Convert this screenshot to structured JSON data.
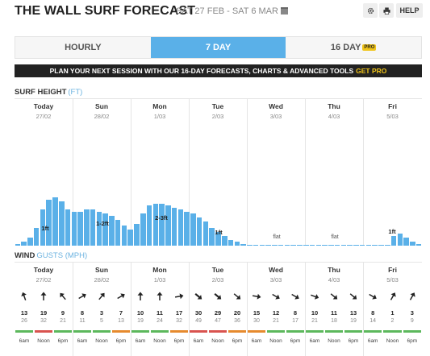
{
  "header": {
    "title": "THE WALL SURF FORECAST",
    "dates": "SAT 27 FEB - SAT 6 MAR",
    "help_label": "HELP"
  },
  "tabs": [
    {
      "label": "HOURLY",
      "active": false
    },
    {
      "label": "7 DAY",
      "active": true
    },
    {
      "label": "16 DAY",
      "active": false,
      "badge": "PRO"
    }
  ],
  "banner": {
    "text": "PLAN YOUR NEXT SESSION WITH OUR 16-DAY FORECASTS, CHARTS & ADVANCED TOOLS",
    "cta": "GET PRO"
  },
  "surf": {
    "label": "SURF HEIGHT",
    "unit": "(FT)"
  },
  "wind": {
    "label": "WIND",
    "unit": "GUSTS (MPH)"
  },
  "colors": {
    "accent": "#5ab0e8",
    "green": "#5cb85c",
    "orange": "#e68a2e",
    "red": "#d9534f"
  },
  "days": [
    {
      "name": "Today",
      "date": "27/02"
    },
    {
      "name": "Sun",
      "date": "28/02"
    },
    {
      "name": "Mon",
      "date": "1/03"
    },
    {
      "name": "Tue",
      "date": "2/03"
    },
    {
      "name": "Wed",
      "date": "3/03"
    },
    {
      "name": "Thu",
      "date": "4/03"
    },
    {
      "name": "Fri",
      "date": "5/03"
    }
  ],
  "surf_labels": [
    "1ft",
    "1-2ft",
    "2-3ft",
    "1ft",
    "flat",
    "flat",
    "1ft"
  ],
  "surf_heights_ft": [
    0.05,
    0.1,
    0.2,
    0.45,
    0.9,
    1.15,
    1.2,
    1.1,
    0.9,
    0.85,
    0.85,
    0.9,
    0.9,
    0.85,
    0.8,
    0.75,
    0.65,
    0.5,
    0.4,
    0.55,
    0.8,
    1.0,
    1.05,
    1.05,
    1.0,
    0.95,
    0.9,
    0.85,
    0.8,
    0.7,
    0.6,
    0.45,
    0.35,
    0.25,
    0.15,
    0.1,
    0.05,
    0.03,
    0.02,
    0.02,
    0.02,
    0.02,
    0.02,
    0.02,
    0.02,
    0.02,
    0.02,
    0.02,
    0.02,
    0.02,
    0.02,
    0.02,
    0.02,
    0.02,
    0.02,
    0.02,
    0.02,
    0.02,
    0.02,
    0.02,
    0.25,
    0.3,
    0.2,
    0.1,
    0.05
  ],
  "time_labels": [
    "6am",
    "Noon",
    "6pm"
  ],
  "wind_data": [
    {
      "speed": 13,
      "gust": 26,
      "dir": -20,
      "color": "green"
    },
    {
      "speed": 19,
      "gust": 32,
      "dir": 0,
      "color": "red"
    },
    {
      "speed": 9,
      "gust": 21,
      "dir": -40,
      "color": "green"
    },
    {
      "speed": 8,
      "gust": 11,
      "dir": 60,
      "color": "green"
    },
    {
      "speed": 3,
      "gust": 5,
      "dir": 40,
      "color": "green"
    },
    {
      "speed": 7,
      "gust": 13,
      "dir": 60,
      "color": "orange"
    },
    {
      "speed": 10,
      "gust": 19,
      "dir": 0,
      "color": "green"
    },
    {
      "speed": 11,
      "gust": 24,
      "dir": 0,
      "color": "green"
    },
    {
      "speed": 17,
      "gust": 32,
      "dir": 80,
      "color": "orange"
    },
    {
      "speed": 30,
      "gust": 49,
      "dir": 130,
      "color": "red"
    },
    {
      "speed": 29,
      "gust": 47,
      "dir": 130,
      "color": "red"
    },
    {
      "speed": 20,
      "gust": 36,
      "dir": 130,
      "color": "orange"
    },
    {
      "speed": 15,
      "gust": 30,
      "dir": 100,
      "color": "orange"
    },
    {
      "speed": 12,
      "gust": 21,
      "dir": 120,
      "color": "green"
    },
    {
      "speed": 8,
      "gust": 17,
      "dir": 120,
      "color": "green"
    },
    {
      "speed": 10,
      "gust": 21,
      "dir": 110,
      "color": "green"
    },
    {
      "speed": 11,
      "gust": 18,
      "dir": 130,
      "color": "green"
    },
    {
      "speed": 13,
      "gust": 19,
      "dir": 130,
      "color": "green"
    },
    {
      "speed": 8,
      "gust": 14,
      "dir": 120,
      "color": "green"
    },
    {
      "speed": 1,
      "gust": 2,
      "dir": 30,
      "color": "green"
    },
    {
      "speed": 3,
      "gust": 9,
      "dir": 30,
      "color": "green"
    }
  ]
}
